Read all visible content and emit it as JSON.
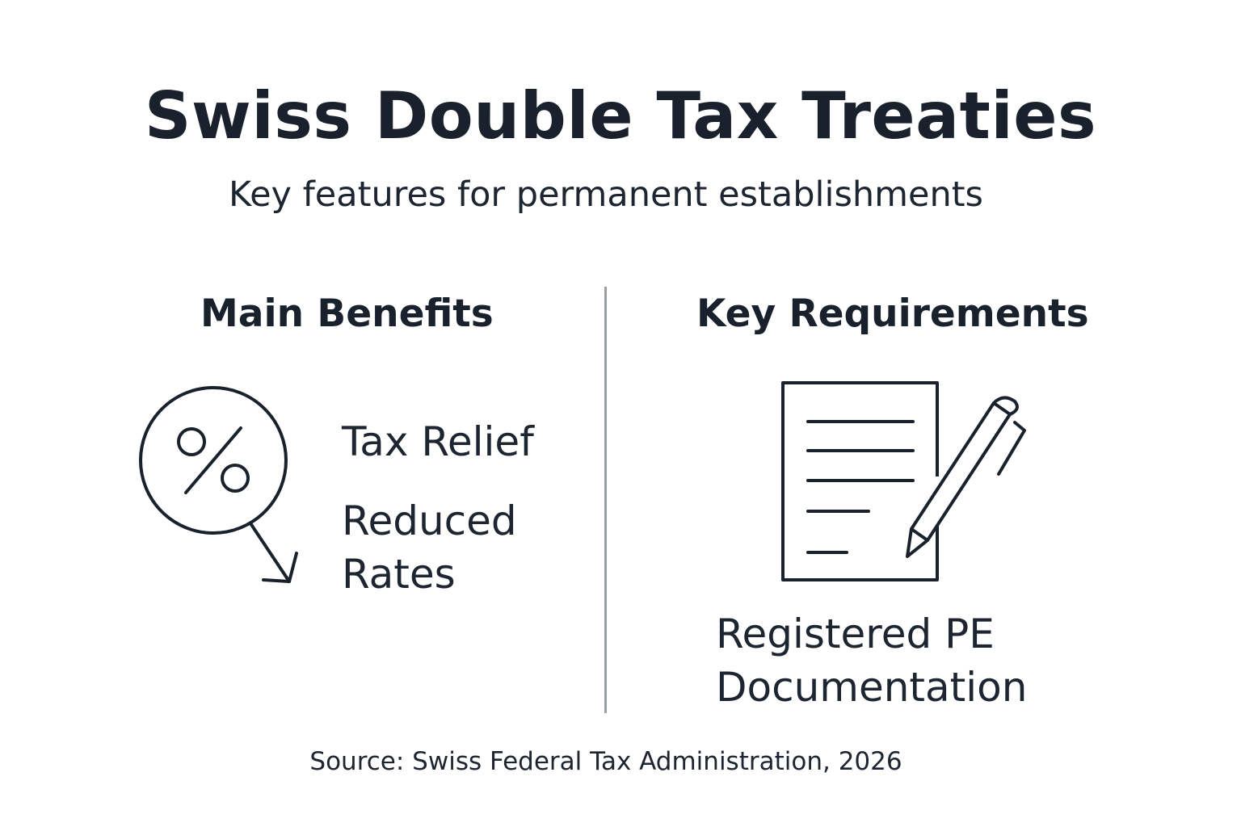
{
  "title": "Swiss Double Tax Treaties",
  "subtitle": "Key features for permanent establishments",
  "benefits": {
    "heading": "Main Benefits",
    "icon": "percent-arrow-down-icon",
    "items": [
      "Tax Relief",
      "Reduced",
      "Rates"
    ]
  },
  "requirements": {
    "heading": "Key Requirements",
    "icon": "document-pen-icon",
    "items": [
      "Registered PE",
      "Documentation"
    ]
  },
  "source": "Source: Swiss Federal Tax Administration, 2026",
  "colors": {
    "text": "#1c2530",
    "divider": "#9a9fa4",
    "background": "#ffffff"
  }
}
